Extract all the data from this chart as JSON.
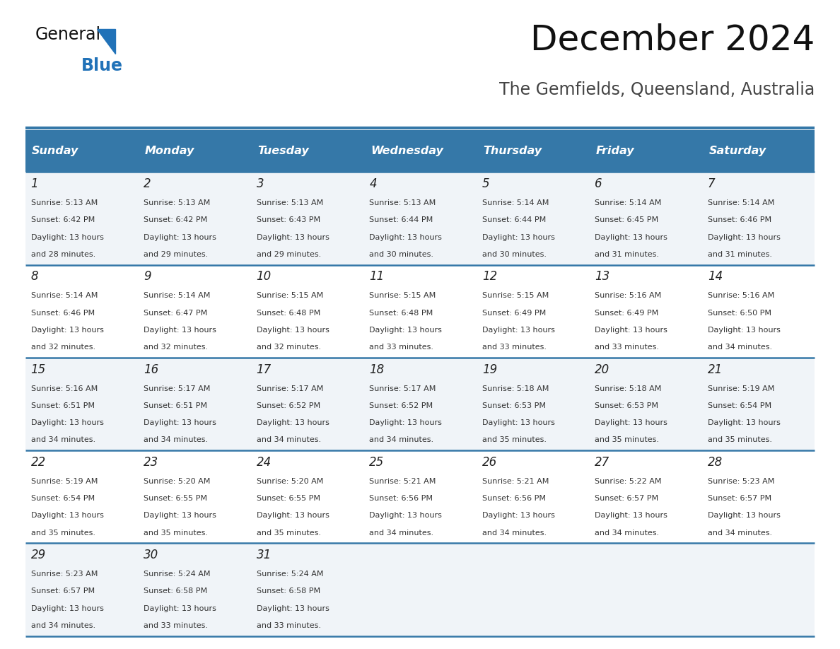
{
  "title": "December 2024",
  "subtitle": "The Gemfields, Queensland, Australia",
  "header_color": "#3578a8",
  "header_text_color": "#ffffff",
  "cell_bg_color": "#f0f4f8",
  "alt_cell_bg_color": "#ffffff",
  "day_headers": [
    "Sunday",
    "Monday",
    "Tuesday",
    "Wednesday",
    "Thursday",
    "Friday",
    "Saturday"
  ],
  "line_color": "#3578a8",
  "days": [
    {
      "day": 1,
      "col": 0,
      "row": 0,
      "sunrise": "5:13 AM",
      "sunset": "6:42 PM",
      "daylight_hours": 13,
      "daylight_minutes": 28
    },
    {
      "day": 2,
      "col": 1,
      "row": 0,
      "sunrise": "5:13 AM",
      "sunset": "6:42 PM",
      "daylight_hours": 13,
      "daylight_minutes": 29
    },
    {
      "day": 3,
      "col": 2,
      "row": 0,
      "sunrise": "5:13 AM",
      "sunset": "6:43 PM",
      "daylight_hours": 13,
      "daylight_minutes": 29
    },
    {
      "day": 4,
      "col": 3,
      "row": 0,
      "sunrise": "5:13 AM",
      "sunset": "6:44 PM",
      "daylight_hours": 13,
      "daylight_minutes": 30
    },
    {
      "day": 5,
      "col": 4,
      "row": 0,
      "sunrise": "5:14 AM",
      "sunset": "6:44 PM",
      "daylight_hours": 13,
      "daylight_minutes": 30
    },
    {
      "day": 6,
      "col": 5,
      "row": 0,
      "sunrise": "5:14 AM",
      "sunset": "6:45 PM",
      "daylight_hours": 13,
      "daylight_minutes": 31
    },
    {
      "day": 7,
      "col": 6,
      "row": 0,
      "sunrise": "5:14 AM",
      "sunset": "6:46 PM",
      "daylight_hours": 13,
      "daylight_minutes": 31
    },
    {
      "day": 8,
      "col": 0,
      "row": 1,
      "sunrise": "5:14 AM",
      "sunset": "6:46 PM",
      "daylight_hours": 13,
      "daylight_minutes": 32
    },
    {
      "day": 9,
      "col": 1,
      "row": 1,
      "sunrise": "5:14 AM",
      "sunset": "6:47 PM",
      "daylight_hours": 13,
      "daylight_minutes": 32
    },
    {
      "day": 10,
      "col": 2,
      "row": 1,
      "sunrise": "5:15 AM",
      "sunset": "6:48 PM",
      "daylight_hours": 13,
      "daylight_minutes": 32
    },
    {
      "day": 11,
      "col": 3,
      "row": 1,
      "sunrise": "5:15 AM",
      "sunset": "6:48 PM",
      "daylight_hours": 13,
      "daylight_minutes": 33
    },
    {
      "day": 12,
      "col": 4,
      "row": 1,
      "sunrise": "5:15 AM",
      "sunset": "6:49 PM",
      "daylight_hours": 13,
      "daylight_minutes": 33
    },
    {
      "day": 13,
      "col": 5,
      "row": 1,
      "sunrise": "5:16 AM",
      "sunset": "6:49 PM",
      "daylight_hours": 13,
      "daylight_minutes": 33
    },
    {
      "day": 14,
      "col": 6,
      "row": 1,
      "sunrise": "5:16 AM",
      "sunset": "6:50 PM",
      "daylight_hours": 13,
      "daylight_minutes": 34
    },
    {
      "day": 15,
      "col": 0,
      "row": 2,
      "sunrise": "5:16 AM",
      "sunset": "6:51 PM",
      "daylight_hours": 13,
      "daylight_minutes": 34
    },
    {
      "day": 16,
      "col": 1,
      "row": 2,
      "sunrise": "5:17 AM",
      "sunset": "6:51 PM",
      "daylight_hours": 13,
      "daylight_minutes": 34
    },
    {
      "day": 17,
      "col": 2,
      "row": 2,
      "sunrise": "5:17 AM",
      "sunset": "6:52 PM",
      "daylight_hours": 13,
      "daylight_minutes": 34
    },
    {
      "day": 18,
      "col": 3,
      "row": 2,
      "sunrise": "5:17 AM",
      "sunset": "6:52 PM",
      "daylight_hours": 13,
      "daylight_minutes": 34
    },
    {
      "day": 19,
      "col": 4,
      "row": 2,
      "sunrise": "5:18 AM",
      "sunset": "6:53 PM",
      "daylight_hours": 13,
      "daylight_minutes": 35
    },
    {
      "day": 20,
      "col": 5,
      "row": 2,
      "sunrise": "5:18 AM",
      "sunset": "6:53 PM",
      "daylight_hours": 13,
      "daylight_minutes": 35
    },
    {
      "day": 21,
      "col": 6,
      "row": 2,
      "sunrise": "5:19 AM",
      "sunset": "6:54 PM",
      "daylight_hours": 13,
      "daylight_minutes": 35
    },
    {
      "day": 22,
      "col": 0,
      "row": 3,
      "sunrise": "5:19 AM",
      "sunset": "6:54 PM",
      "daylight_hours": 13,
      "daylight_minutes": 35
    },
    {
      "day": 23,
      "col": 1,
      "row": 3,
      "sunrise": "5:20 AM",
      "sunset": "6:55 PM",
      "daylight_hours": 13,
      "daylight_minutes": 35
    },
    {
      "day": 24,
      "col": 2,
      "row": 3,
      "sunrise": "5:20 AM",
      "sunset": "6:55 PM",
      "daylight_hours": 13,
      "daylight_minutes": 35
    },
    {
      "day": 25,
      "col": 3,
      "row": 3,
      "sunrise": "5:21 AM",
      "sunset": "6:56 PM",
      "daylight_hours": 13,
      "daylight_minutes": 34
    },
    {
      "day": 26,
      "col": 4,
      "row": 3,
      "sunrise": "5:21 AM",
      "sunset": "6:56 PM",
      "daylight_hours": 13,
      "daylight_minutes": 34
    },
    {
      "day": 27,
      "col": 5,
      "row": 3,
      "sunrise": "5:22 AM",
      "sunset": "6:57 PM",
      "daylight_hours": 13,
      "daylight_minutes": 34
    },
    {
      "day": 28,
      "col": 6,
      "row": 3,
      "sunrise": "5:23 AM",
      "sunset": "6:57 PM",
      "daylight_hours": 13,
      "daylight_minutes": 34
    },
    {
      "day": 29,
      "col": 0,
      "row": 4,
      "sunrise": "5:23 AM",
      "sunset": "6:57 PM",
      "daylight_hours": 13,
      "daylight_minutes": 34
    },
    {
      "day": 30,
      "col": 1,
      "row": 4,
      "sunrise": "5:24 AM",
      "sunset": "6:58 PM",
      "daylight_hours": 13,
      "daylight_minutes": 33
    },
    {
      "day": 31,
      "col": 2,
      "row": 4,
      "sunrise": "5:24 AM",
      "sunset": "6:58 PM",
      "daylight_hours": 13,
      "daylight_minutes": 33
    }
  ]
}
